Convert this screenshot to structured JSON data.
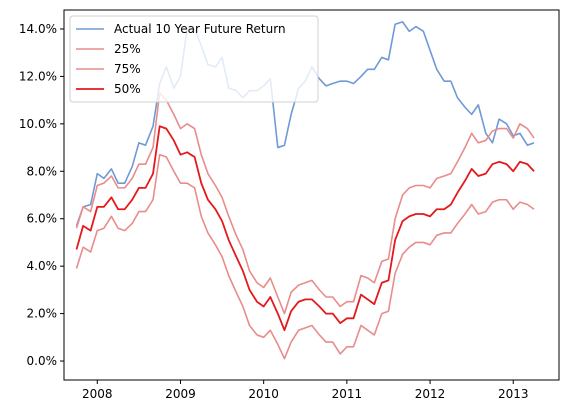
{
  "chart_data": {
    "type": "line",
    "title": "",
    "xlabel": "",
    "ylabel": "",
    "xlim": [
      2007.6,
      2013.55
    ],
    "ylim": [
      -0.008,
      0.148
    ],
    "x_ticks": [
      2008,
      2009,
      2010,
      2011,
      2012,
      2013
    ],
    "x_tick_labels": [
      "2008",
      "2009",
      "2010",
      "2011",
      "2012",
      "2013"
    ],
    "y_ticks": [
      0.0,
      0.02,
      0.04,
      0.06,
      0.08,
      0.1,
      0.12,
      0.14
    ],
    "y_tick_labels": [
      "0.0%",
      "2.0%",
      "4.0%",
      "6.0%",
      "8.0%",
      "10.0%",
      "12.0%",
      "14.0%"
    ],
    "grid": false,
    "legend_position": "top-left",
    "x": [
      2007.75,
      2007.83,
      2007.92,
      2008.0,
      2008.08,
      2008.17,
      2008.25,
      2008.33,
      2008.42,
      2008.5,
      2008.58,
      2008.67,
      2008.75,
      2008.83,
      2008.92,
      2009.0,
      2009.08,
      2009.17,
      2009.25,
      2009.33,
      2009.42,
      2009.5,
      2009.58,
      2009.67,
      2009.75,
      2009.83,
      2009.92,
      2010.0,
      2010.08,
      2010.17,
      2010.25,
      2010.33,
      2010.42,
      2010.5,
      2010.58,
      2010.67,
      2010.75,
      2010.83,
      2010.92,
      2011.0,
      2011.08,
      2011.17,
      2011.25,
      2011.33,
      2011.42,
      2011.5,
      2011.58,
      2011.67,
      2011.75,
      2011.83,
      2011.92,
      2012.0,
      2012.08,
      2012.17,
      2012.25,
      2012.33,
      2012.42,
      2012.5,
      2012.58,
      2012.67,
      2012.75,
      2012.83,
      2012.92,
      2013.0,
      2013.08,
      2013.17,
      2013.25
    ],
    "series": [
      {
        "name": "Actual 10 Year Future Return",
        "color": "#6f9ad6",
        "values": [
          0.057,
          0.065,
          0.066,
          0.079,
          0.077,
          0.081,
          0.075,
          0.075,
          0.082,
          0.092,
          0.091,
          0.099,
          0.117,
          0.124,
          0.115,
          0.12,
          0.14,
          0.14,
          0.133,
          0.125,
          0.124,
          0.128,
          0.115,
          0.114,
          0.111,
          0.114,
          0.114,
          0.116,
          0.119,
          0.09,
          0.091,
          0.104,
          0.115,
          0.118,
          0.124,
          0.119,
          0.116,
          0.117,
          0.118,
          0.118,
          0.117,
          0.12,
          0.123,
          0.123,
          0.128,
          0.127,
          0.142,
          0.143,
          0.139,
          0.141,
          0.139,
          0.131,
          0.123,
          0.118,
          0.118,
          0.111,
          0.107,
          0.104,
          0.108,
          0.096,
          0.092,
          0.102,
          0.1,
          0.095,
          0.096,
          0.091,
          0.092
        ]
      },
      {
        "name": "25%",
        "color": "#e88c8c",
        "values": [
          0.039,
          0.048,
          0.046,
          0.055,
          0.056,
          0.061,
          0.056,
          0.055,
          0.058,
          0.063,
          0.063,
          0.068,
          0.087,
          0.086,
          0.08,
          0.075,
          0.075,
          0.073,
          0.061,
          0.054,
          0.049,
          0.044,
          0.036,
          0.029,
          0.023,
          0.015,
          0.011,
          0.01,
          0.013,
          0.007,
          0.001,
          0.008,
          0.013,
          0.014,
          0.015,
          0.011,
          0.008,
          0.008,
          0.003,
          0.006,
          0.006,
          0.015,
          0.013,
          0.011,
          0.02,
          0.021,
          0.037,
          0.045,
          0.048,
          0.05,
          0.05,
          0.049,
          0.053,
          0.054,
          0.054,
          0.058,
          0.062,
          0.066,
          0.062,
          0.063,
          0.067,
          0.068,
          0.068,
          0.064,
          0.067,
          0.066,
          0.064
        ]
      },
      {
        "name": "75%",
        "color": "#e88c8c",
        "values": [
          0.056,
          0.065,
          0.063,
          0.074,
          0.075,
          0.078,
          0.073,
          0.073,
          0.077,
          0.083,
          0.083,
          0.09,
          0.113,
          0.11,
          0.104,
          0.098,
          0.1,
          0.098,
          0.087,
          0.079,
          0.074,
          0.069,
          0.061,
          0.053,
          0.047,
          0.038,
          0.033,
          0.031,
          0.035,
          0.027,
          0.02,
          0.029,
          0.032,
          0.033,
          0.034,
          0.03,
          0.027,
          0.027,
          0.023,
          0.025,
          0.025,
          0.036,
          0.035,
          0.033,
          0.042,
          0.043,
          0.06,
          0.07,
          0.073,
          0.074,
          0.074,
          0.073,
          0.077,
          0.078,
          0.079,
          0.084,
          0.09,
          0.096,
          0.092,
          0.093,
          0.097,
          0.098,
          0.098,
          0.094,
          0.1,
          0.098,
          0.094
        ]
      },
      {
        "name": "50%",
        "color": "#e31a1c",
        "values": [
          0.047,
          0.057,
          0.055,
          0.065,
          0.065,
          0.069,
          0.064,
          0.064,
          0.068,
          0.073,
          0.073,
          0.079,
          0.099,
          0.098,
          0.093,
          0.087,
          0.088,
          0.086,
          0.075,
          0.068,
          0.064,
          0.059,
          0.051,
          0.044,
          0.038,
          0.03,
          0.025,
          0.023,
          0.027,
          0.02,
          0.013,
          0.021,
          0.025,
          0.026,
          0.026,
          0.023,
          0.02,
          0.02,
          0.016,
          0.018,
          0.018,
          0.028,
          0.026,
          0.024,
          0.033,
          0.034,
          0.051,
          0.059,
          0.061,
          0.062,
          0.062,
          0.061,
          0.064,
          0.064,
          0.066,
          0.071,
          0.076,
          0.081,
          0.078,
          0.079,
          0.083,
          0.084,
          0.083,
          0.08,
          0.084,
          0.083,
          0.08
        ]
      }
    ]
  }
}
